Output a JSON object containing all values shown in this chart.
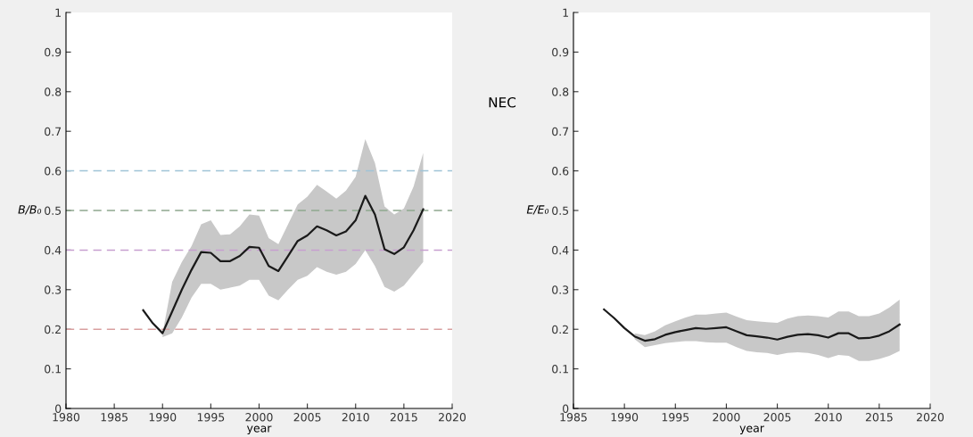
{
  "chart_data": [
    {
      "type": "line",
      "xlabel": "year",
      "ylabel": "B/B₀",
      "xlim": [
        1980,
        2020
      ],
      "ylim": [
        0,
        1
      ],
      "xticks": [
        1980,
        1985,
        1990,
        1995,
        2000,
        2005,
        2010,
        2015,
        2020
      ],
      "yticks": [
        0,
        0.1,
        0.2,
        0.3,
        0.4,
        0.5,
        0.6,
        0.7,
        0.8,
        0.9,
        1
      ],
      "x": [
        1988,
        1989,
        1990,
        1991,
        1992,
        1993,
        1994,
        1995,
        1996,
        1997,
        1998,
        1999,
        2000,
        2001,
        2002,
        2003,
        2004,
        2005,
        2006,
        2007,
        2008,
        2009,
        2010,
        2011,
        2012,
        2013,
        2014,
        2015,
        2016,
        2017
      ],
      "series": [
        {
          "color": "#1a1a1a",
          "values": [
            0.248,
            0.215,
            0.19,
            0.245,
            0.3,
            0.35,
            0.395,
            0.393,
            0.372,
            0.372,
            0.385,
            0.408,
            0.406,
            0.36,
            0.347,
            0.385,
            0.423,
            0.437,
            0.46,
            0.45,
            0.437,
            0.447,
            0.475,
            0.537,
            0.49,
            0.402,
            0.39,
            0.407,
            0.45,
            0.503
          ],
          "upper": [
            null,
            null,
            0.19,
            0.32,
            0.37,
            0.41,
            0.465,
            0.475,
            0.438,
            0.44,
            0.46,
            0.49,
            0.487,
            0.43,
            0.415,
            0.465,
            0.515,
            0.535,
            0.565,
            0.548,
            0.53,
            0.55,
            0.585,
            0.68,
            0.62,
            0.51,
            0.49,
            0.505,
            0.56,
            0.645
          ],
          "lower": [
            null,
            null,
            0.18,
            0.19,
            0.23,
            0.28,
            0.315,
            0.315,
            0.3,
            0.305,
            0.31,
            0.325,
            0.325,
            0.285,
            0.273,
            0.3,
            0.325,
            0.335,
            0.357,
            0.345,
            0.338,
            0.345,
            0.365,
            0.4,
            0.36,
            0.307,
            0.295,
            0.31,
            0.34,
            0.37
          ]
        }
      ],
      "ref_lines": [
        {
          "axis": "y",
          "value": 0.6,
          "color": "#9fc3d6",
          "line_style": "dashed"
        },
        {
          "axis": "y",
          "value": 0.5,
          "color": "#8fa88f",
          "line_style": "dashed"
        },
        {
          "axis": "y",
          "value": 0.4,
          "color": "#c79fd0",
          "line_style": "dashed"
        },
        {
          "axis": "y",
          "value": 0.2,
          "color": "#d9a0a0",
          "line_style": "dashed"
        }
      ],
      "grid": false,
      "legend": false,
      "marker": "none",
      "line_style": "solid"
    },
    {
      "type": "line",
      "xlabel": "year",
      "ylabel": "E/E₀",
      "annotations": [
        "NEC"
      ],
      "xlim": [
        1985,
        2020
      ],
      "ylim": [
        0,
        1
      ],
      "xticks": [
        1985,
        1990,
        1995,
        2000,
        2005,
        2010,
        2015,
        2020
      ],
      "yticks": [
        0,
        0.1,
        0.2,
        0.3,
        0.4,
        0.5,
        0.6,
        0.7,
        0.8,
        0.9,
        1
      ],
      "x": [
        1988,
        1989,
        1990,
        1991,
        1992,
        1993,
        1994,
        1995,
        1996,
        1997,
        1998,
        1999,
        2000,
        2001,
        2002,
        2003,
        2004,
        2005,
        2006,
        2007,
        2008,
        2009,
        2010,
        2011,
        2012,
        2013,
        2014,
        2015,
        2016,
        2017
      ],
      "series": [
        {
          "color": "#1a1a1a",
          "values": [
            0.25,
            0.228,
            0.203,
            0.182,
            0.171,
            0.175,
            0.186,
            0.193,
            0.198,
            0.203,
            0.201,
            0.203,
            0.205,
            0.195,
            0.185,
            0.182,
            0.179,
            0.174,
            0.181,
            0.186,
            0.188,
            0.185,
            0.179,
            0.19,
            0.19,
            0.177,
            0.178,
            0.184,
            0.195,
            0.212
          ],
          "upper": [
            null,
            null,
            null,
            0.19,
            0.185,
            0.195,
            0.21,
            0.22,
            0.23,
            0.237,
            0.237,
            0.24,
            0.242,
            0.232,
            0.223,
            0.22,
            0.218,
            0.216,
            0.227,
            0.233,
            0.235,
            0.233,
            0.23,
            0.245,
            0.245,
            0.233,
            0.233,
            0.24,
            0.255,
            0.275
          ],
          "lower": [
            null,
            null,
            null,
            0.175,
            0.155,
            0.16,
            0.165,
            0.168,
            0.17,
            0.17,
            0.167,
            0.166,
            0.166,
            0.155,
            0.145,
            0.142,
            0.14,
            0.135,
            0.14,
            0.142,
            0.14,
            0.135,
            0.127,
            0.135,
            0.133,
            0.12,
            0.12,
            0.125,
            0.133,
            0.145
          ]
        }
      ],
      "grid": false,
      "legend": false,
      "marker": "none",
      "line_style": "solid"
    }
  ]
}
